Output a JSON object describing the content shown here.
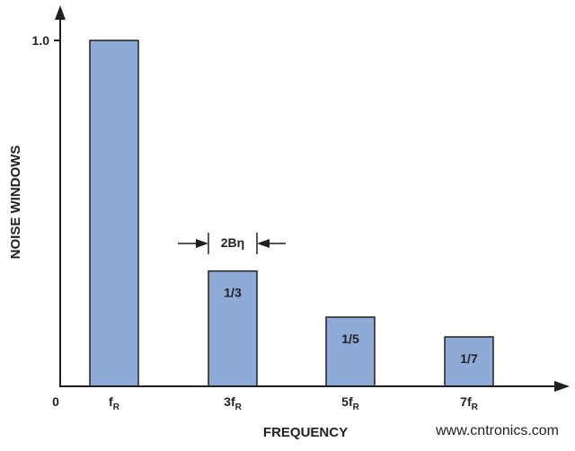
{
  "chart_data": {
    "type": "bar",
    "title": "",
    "xlabel": "FREQUENCY",
    "ylabel": "NOISE WINDOWS",
    "ylim": [
      0,
      1.0
    ],
    "y_ticks": [
      {
        "value": 1.0,
        "label": "1.0"
      }
    ],
    "x_origin_label": "0",
    "categories": [
      {
        "base": "f",
        "sub": "R",
        "value": 1.0,
        "label": ""
      },
      {
        "base": "3f",
        "sub": "R",
        "value": 0.3333,
        "label": "1/3"
      },
      {
        "base": "5f",
        "sub": "R",
        "value": 0.2,
        "label": "1/5"
      },
      {
        "base": "7f",
        "sub": "R",
        "value": 0.142857,
        "label": "1/7"
      }
    ],
    "width_annotation": "2Bη",
    "grid": false,
    "bar_color": "#8eaad6",
    "outline_color": "#231f20"
  },
  "watermark": "www.cntronics.com",
  "watermark_color": "#b9dfa9"
}
